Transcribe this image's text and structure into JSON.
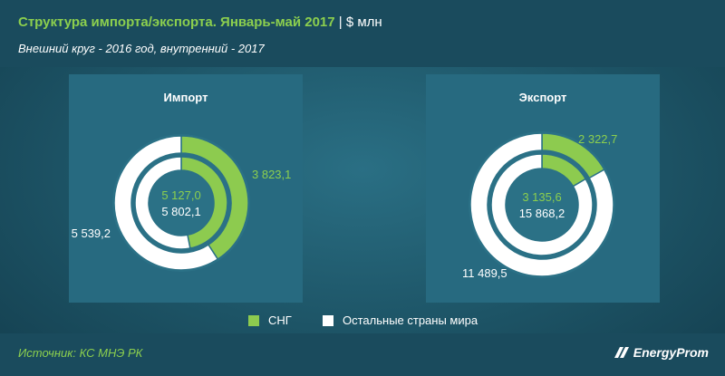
{
  "header": {
    "title": "Структура импорта/экспорта. Январь-май 2017",
    "title_unit": "| $ млн",
    "subtitle": "Внешний круг - 2016 год, внутренний - 2017"
  },
  "colors": {
    "cis": "#8dcb4f",
    "rest": "#ffffff",
    "accent": "#8ccf4e"
  },
  "chart_data": [
    {
      "type": "pie",
      "variant": "nested-donut",
      "title": "Импорт",
      "categories": [
        "СНГ",
        "Остальные страны мира"
      ],
      "series": [
        {
          "name": "2016",
          "ring": "outer",
          "values": [
            3823.1,
            5539.2
          ],
          "labels": [
            "3 823,1",
            "5 539,2"
          ]
        },
        {
          "name": "2017",
          "ring": "inner",
          "values": [
            5127.0,
            5802.1
          ],
          "labels": [
            "5 127,0",
            "5 802,1"
          ]
        }
      ]
    },
    {
      "type": "pie",
      "variant": "nested-donut",
      "title": "Экспорт",
      "categories": [
        "СНГ",
        "Остальные страны мира"
      ],
      "series": [
        {
          "name": "2016",
          "ring": "outer",
          "values": [
            2322.7,
            11489.5
          ],
          "labels": [
            "2 322,7",
            "11 489,5"
          ]
        },
        {
          "name": "2017",
          "ring": "inner",
          "values": [
            3135.6,
            15868.2
          ],
          "labels": [
            "3 135,6",
            "15 868,2"
          ]
        }
      ]
    }
  ],
  "legend": {
    "items": [
      {
        "label": "СНГ",
        "color": "#8dcb4f"
      },
      {
        "label": "Остальные страны мира",
        "color": "#ffffff"
      }
    ]
  },
  "footer": {
    "source": "Источник: КС МНЭ РК",
    "brand": "EnergyProm"
  }
}
